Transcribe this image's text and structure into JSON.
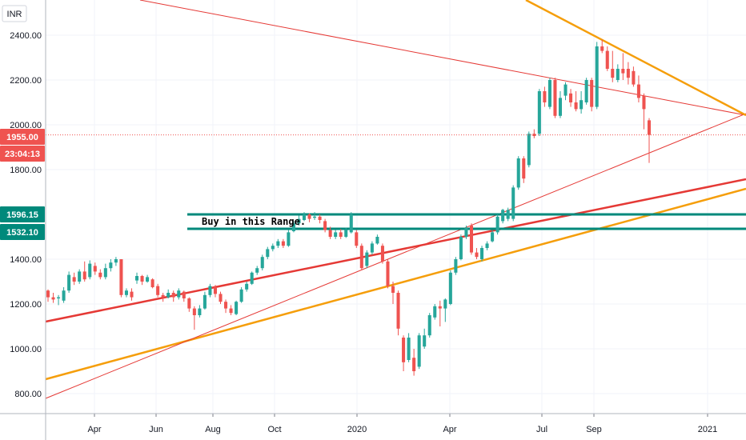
{
  "chart_data": {
    "type": "candlestick",
    "currency": "INR",
    "y_ticks": [
      "2400.00",
      "2200.00",
      "2000.00",
      "1800.00",
      "1400.00",
      "1200.00",
      "1000.00",
      "800.00"
    ],
    "x_ticks": [
      "Apr",
      "Jun",
      "Aug",
      "Oct",
      "2020",
      "Apr",
      "Jul",
      "Sep",
      "2021"
    ],
    "ylim": [
      740,
      2500
    ],
    "grid": true,
    "colors": {
      "up": "#26a69a",
      "down": "#ef5350",
      "support": "#f59e0b",
      "resistance": "#e53935",
      "zone": "#00897b"
    },
    "badges": {
      "price": "1955.00",
      "timer": "23:04:13",
      "zone_high": "1596.15",
      "zone_low": "1532.10"
    },
    "annotation": "Buy in this Range.",
    "last_price": 1955,
    "zone": {
      "high": 1596.15,
      "low": 1532.1
    },
    "candles": [
      {
        "o": 1260,
        "c": 1230,
        "h": 1265,
        "l": 1210
      },
      {
        "o": 1230,
        "c": 1220,
        "h": 1250,
        "l": 1205
      },
      {
        "o": 1225,
        "c": 1230,
        "h": 1240,
        "l": 1195
      },
      {
        "o": 1215,
        "c": 1260,
        "h": 1275,
        "l": 1205
      },
      {
        "o": 1260,
        "c": 1330,
        "h": 1345,
        "l": 1250
      },
      {
        "o": 1320,
        "c": 1300,
        "h": 1340,
        "l": 1285
      },
      {
        "o": 1300,
        "c": 1345,
        "h": 1355,
        "l": 1290
      },
      {
        "o": 1345,
        "c": 1310,
        "h": 1390,
        "l": 1300
      },
      {
        "o": 1320,
        "c": 1380,
        "h": 1395,
        "l": 1310
      },
      {
        "o": 1370,
        "c": 1345,
        "h": 1385,
        "l": 1330
      },
      {
        "o": 1340,
        "c": 1320,
        "h": 1355,
        "l": 1310
      },
      {
        "o": 1320,
        "c": 1360,
        "h": 1380,
        "l": 1310
      },
      {
        "o": 1360,
        "c": 1385,
        "h": 1400,
        "l": 1345
      },
      {
        "o": 1385,
        "c": 1400,
        "h": 1410,
        "l": 1370
      },
      {
        "o": 1400,
        "c": 1240,
        "h": 1400,
        "l": 1230
      },
      {
        "o": 1240,
        "c": 1260,
        "h": 1270,
        "l": 1230
      },
      {
        "o": 1255,
        "c": 1230,
        "h": 1270,
        "l": 1215
      },
      {
        "o": 1305,
        "c": 1325,
        "h": 1340,
        "l": 1290
      },
      {
        "o": 1325,
        "c": 1300,
        "h": 1330,
        "l": 1285
      },
      {
        "o": 1300,
        "c": 1320,
        "h": 1330,
        "l": 1295
      },
      {
        "o": 1310,
        "c": 1275,
        "h": 1315,
        "l": 1270
      },
      {
        "o": 1280,
        "c": 1240,
        "h": 1290,
        "l": 1230
      },
      {
        "o": 1240,
        "c": 1230,
        "h": 1250,
        "l": 1210
      },
      {
        "o": 1230,
        "c": 1250,
        "h": 1265,
        "l": 1225
      },
      {
        "o": 1250,
        "c": 1230,
        "h": 1260,
        "l": 1210
      },
      {
        "o": 1230,
        "c": 1260,
        "h": 1270,
        "l": 1220
      },
      {
        "o": 1255,
        "c": 1225,
        "h": 1260,
        "l": 1210
      },
      {
        "o": 1225,
        "c": 1180,
        "h": 1230,
        "l": 1165
      },
      {
        "o": 1180,
        "c": 1150,
        "h": 1190,
        "l": 1085
      },
      {
        "o": 1150,
        "c": 1180,
        "h": 1195,
        "l": 1140
      },
      {
        "o": 1180,
        "c": 1240,
        "h": 1255,
        "l": 1175
      },
      {
        "o": 1240,
        "c": 1280,
        "h": 1290,
        "l": 1230
      },
      {
        "o": 1275,
        "c": 1245,
        "h": 1285,
        "l": 1230
      },
      {
        "o": 1245,
        "c": 1210,
        "h": 1255,
        "l": 1200
      },
      {
        "o": 1210,
        "c": 1180,
        "h": 1220,
        "l": 1160
      },
      {
        "o": 1180,
        "c": 1160,
        "h": 1195,
        "l": 1150
      },
      {
        "o": 1155,
        "c": 1210,
        "h": 1215,
        "l": 1150
      },
      {
        "o": 1210,
        "c": 1265,
        "h": 1275,
        "l": 1205
      },
      {
        "o": 1265,
        "c": 1290,
        "h": 1300,
        "l": 1255
      },
      {
        "o": 1290,
        "c": 1340,
        "h": 1345,
        "l": 1285
      },
      {
        "o": 1340,
        "c": 1360,
        "h": 1370,
        "l": 1330
      },
      {
        "o": 1360,
        "c": 1410,
        "h": 1420,
        "l": 1350
      },
      {
        "o": 1410,
        "c": 1445,
        "h": 1455,
        "l": 1400
      },
      {
        "o": 1445,
        "c": 1460,
        "h": 1470,
        "l": 1435
      },
      {
        "o": 1460,
        "c": 1480,
        "h": 1490,
        "l": 1450
      },
      {
        "o": 1480,
        "c": 1460,
        "h": 1490,
        "l": 1450
      },
      {
        "o": 1460,
        "c": 1520,
        "h": 1530,
        "l": 1455
      },
      {
        "o": 1525,
        "c": 1560,
        "h": 1570,
        "l": 1520
      },
      {
        "o": 1560,
        "c": 1580,
        "h": 1595,
        "l": 1550
      },
      {
        "o": 1575,
        "c": 1600,
        "h": 1610,
        "l": 1570
      },
      {
        "o": 1600,
        "c": 1580,
        "h": 1605,
        "l": 1565
      },
      {
        "o": 1585,
        "c": 1590,
        "h": 1610,
        "l": 1575
      },
      {
        "o": 1590,
        "c": 1575,
        "h": 1600,
        "l": 1560
      },
      {
        "o": 1570,
        "c": 1530,
        "h": 1580,
        "l": 1520
      },
      {
        "o": 1530,
        "c": 1500,
        "h": 1545,
        "l": 1490
      },
      {
        "o": 1500,
        "c": 1520,
        "h": 1530,
        "l": 1490
      },
      {
        "o": 1520,
        "c": 1500,
        "h": 1535,
        "l": 1490
      },
      {
        "o": 1500,
        "c": 1530,
        "h": 1540,
        "l": 1495
      },
      {
        "o": 1520,
        "c": 1600,
        "h": 1610,
        "l": 1515
      },
      {
        "o": 1520,
        "c": 1460,
        "h": 1530,
        "l": 1450
      },
      {
        "o": 1460,
        "c": 1360,
        "h": 1470,
        "l": 1350
      },
      {
        "o": 1370,
        "c": 1430,
        "h": 1440,
        "l": 1360
      },
      {
        "o": 1430,
        "c": 1470,
        "h": 1480,
        "l": 1420
      },
      {
        "o": 1470,
        "c": 1500,
        "h": 1510,
        "l": 1465
      },
      {
        "o": 1460,
        "c": 1390,
        "h": 1470,
        "l": 1380
      },
      {
        "o": 1390,
        "c": 1280,
        "h": 1400,
        "l": 1270
      },
      {
        "o": 1280,
        "c": 1250,
        "h": 1300,
        "l": 1200
      },
      {
        "o": 1250,
        "c": 1090,
        "h": 1260,
        "l": 1060
      },
      {
        "o": 1050,
        "c": 940,
        "h": 1060,
        "l": 900
      },
      {
        "o": 950,
        "c": 1050,
        "h": 1070,
        "l": 940
      },
      {
        "o": 960,
        "c": 900,
        "h": 1000,
        "l": 880
      },
      {
        "o": 920,
        "c": 1060,
        "h": 1070,
        "l": 910
      },
      {
        "o": 1010,
        "c": 1060,
        "h": 1090,
        "l": 1000
      },
      {
        "o": 1060,
        "c": 1150,
        "h": 1160,
        "l": 1050
      },
      {
        "o": 1140,
        "c": 1190,
        "h": 1200,
        "l": 1130
      },
      {
        "o": 1190,
        "c": 1180,
        "h": 1215,
        "l": 1100
      },
      {
        "o": 1180,
        "c": 1220,
        "h": 1225,
        "l": 1120
      },
      {
        "o": 1200,
        "c": 1340,
        "h": 1350,
        "l": 1195
      },
      {
        "o": 1340,
        "c": 1400,
        "h": 1410,
        "l": 1330
      },
      {
        "o": 1400,
        "c": 1500,
        "h": 1510,
        "l": 1395
      },
      {
        "o": 1500,
        "c": 1540,
        "h": 1550,
        "l": 1490
      },
      {
        "o": 1550,
        "c": 1430,
        "h": 1560,
        "l": 1420
      },
      {
        "o": 1430,
        "c": 1410,
        "h": 1450,
        "l": 1400
      },
      {
        "o": 1400,
        "c": 1450,
        "h": 1460,
        "l": 1390
      },
      {
        "o": 1450,
        "c": 1470,
        "h": 1480,
        "l": 1440
      },
      {
        "o": 1480,
        "c": 1520,
        "h": 1530,
        "l": 1475
      },
      {
        "o": 1520,
        "c": 1590,
        "h": 1600,
        "l": 1510
      },
      {
        "o": 1570,
        "c": 1620,
        "h": 1625,
        "l": 1560
      },
      {
        "o": 1580,
        "c": 1620,
        "h": 1630,
        "l": 1570
      },
      {
        "o": 1580,
        "c": 1720,
        "h": 1730,
        "l": 1570
      },
      {
        "o": 1720,
        "c": 1850,
        "h": 1860,
        "l": 1710
      },
      {
        "o": 1850,
        "c": 1760,
        "h": 1860,
        "l": 1740
      },
      {
        "o": 1820,
        "c": 1960,
        "h": 1970,
        "l": 1810
      },
      {
        "o": 1960,
        "c": 1950,
        "h": 1980,
        "l": 1940
      },
      {
        "o": 1960,
        "c": 2150,
        "h": 2160,
        "l": 1950
      },
      {
        "o": 2150,
        "c": 2100,
        "h": 2170,
        "l": 2080
      },
      {
        "o": 2080,
        "c": 2200,
        "h": 2210,
        "l": 2070
      },
      {
        "o": 2200,
        "c": 2040,
        "h": 2210,
        "l": 2030
      },
      {
        "o": 2040,
        "c": 2120,
        "h": 2150,
        "l": 2030
      },
      {
        "o": 2130,
        "c": 2180,
        "h": 2190,
        "l": 2110
      },
      {
        "o": 2140,
        "c": 2100,
        "h": 2160,
        "l": 2080
      },
      {
        "o": 2100,
        "c": 2070,
        "h": 2150,
        "l": 2060
      },
      {
        "o": 2070,
        "c": 2110,
        "h": 2150,
        "l": 2050
      },
      {
        "o": 2100,
        "c": 2200,
        "h": 2210,
        "l": 2090
      },
      {
        "o": 2200,
        "c": 2080,
        "h": 2210,
        "l": 2060
      },
      {
        "o": 2080,
        "c": 2350,
        "h": 2370,
        "l": 2070
      },
      {
        "o": 2350,
        "c": 2330,
        "h": 2380,
        "l": 2320
      },
      {
        "o": 2330,
        "c": 2250,
        "h": 2350,
        "l": 2240
      },
      {
        "o": 2250,
        "c": 2210,
        "h": 2330,
        "l": 2190
      },
      {
        "o": 2200,
        "c": 2250,
        "h": 2270,
        "l": 2190
      },
      {
        "o": 2250,
        "c": 2230,
        "h": 2320,
        "l": 2200
      },
      {
        "o": 2250,
        "c": 2210,
        "h": 2280,
        "l": 2180
      },
      {
        "o": 2240,
        "c": 2180,
        "h": 2260,
        "l": 2170
      },
      {
        "o": 2180,
        "c": 2120,
        "h": 2220,
        "l": 2100
      },
      {
        "o": 2130,
        "c": 2070,
        "h": 2140,
        "l": 1980
      },
      {
        "o": 2020,
        "c": 1955,
        "h": 2030,
        "l": 1830
      }
    ]
  }
}
